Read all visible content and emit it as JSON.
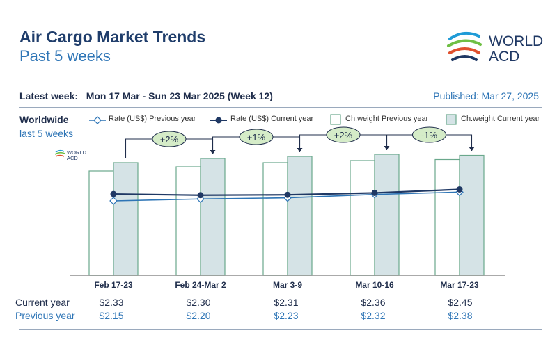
{
  "header": {
    "title": "Air Cargo Market Trends",
    "subtitle": "Past 5 weeks",
    "latest_week": "Latest week:   Mon 17 Mar - Sun 23 Mar 2025 (Week 12)",
    "published": "Published: Mar 27, 2025",
    "region": "Worldwide",
    "region_sub": "last 5 weeks"
  },
  "logo": {
    "line1": "WORLD",
    "line2": "ACD"
  },
  "colors": {
    "navy": "#1f3864",
    "blue": "#2e75b6",
    "bar_prev_fill": "#ffffff",
    "bar_prev_stroke": "#6aa88c",
    "bar_curr_fill": "#d5e3e6",
    "bar_curr_stroke": "#6aa88c",
    "badge_fill": "#d5ecc8"
  },
  "legend": {
    "rate_prev": "Rate (US$) Previous year",
    "rate_curr": "Rate (US$) Current year",
    "cw_prev": "Ch.weight Previous year",
    "cw_curr": "Ch.weight Current year"
  },
  "table": {
    "current_label": "Current year",
    "previous_label": "Previous year"
  },
  "chart_data": {
    "type": "bar",
    "categories": [
      "Feb 17-23",
      "Feb 24-Mar 2",
      "Mar 3-9",
      "Mar 10-16",
      "Mar 17-23"
    ],
    "series": [
      {
        "name": "Ch.weight Previous year",
        "kind": "bar",
        "values": [
          100,
          104,
          108,
          110,
          111
        ]
      },
      {
        "name": "Ch.weight Current year",
        "kind": "bar",
        "values": [
          108,
          112,
          114,
          116,
          115
        ]
      },
      {
        "name": "Rate (US$) Previous year",
        "kind": "line",
        "values": [
          2.15,
          2.2,
          2.23,
          2.32,
          2.38
        ]
      },
      {
        "name": "Rate (US$) Current year",
        "kind": "line",
        "values": [
          2.33,
          2.3,
          2.31,
          2.36,
          2.45
        ]
      }
    ],
    "rate_labels_current": [
      "$2.33",
      "$2.30",
      "$2.31",
      "$2.36",
      "$2.45"
    ],
    "rate_labels_previous": [
      "$2.15",
      "$2.20",
      "$2.23",
      "$2.32",
      "$2.38"
    ],
    "changes": [
      "+2%",
      "+1%",
      "+2%",
      "-1%"
    ]
  }
}
